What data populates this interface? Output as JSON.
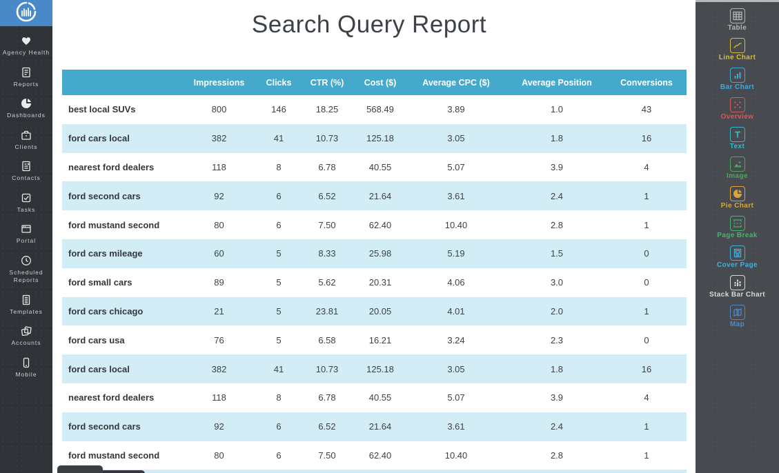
{
  "app": {
    "logo_icon": "circular-bar-chart-logo"
  },
  "report": {
    "title": "Search Query Report"
  },
  "left_sidebar": {
    "items": [
      {
        "label": "Agency Health",
        "icon": "heart-icon"
      },
      {
        "label": "Reports",
        "icon": "report-document-icon"
      },
      {
        "label": "Dashboards",
        "icon": "pie-dashboard-icon"
      },
      {
        "label": "Clients",
        "icon": "briefcase-icon"
      },
      {
        "label": "Contacts",
        "icon": "contact-card-icon"
      },
      {
        "label": "Tasks",
        "icon": "checkbox-icon"
      },
      {
        "label": "Portal",
        "icon": "browser-window-icon"
      },
      {
        "label": "Scheduled Reports",
        "icon": "clock-icon"
      },
      {
        "label": "Templates",
        "icon": "template-document-icon"
      },
      {
        "label": "Accounts",
        "icon": "stacked-cards-icon"
      },
      {
        "label": "Mobile",
        "icon": "smartphone-icon"
      }
    ]
  },
  "table": {
    "header_background": "#45a9cc",
    "alt_row_background": "#d3edf7",
    "columns": [
      "",
      "Impressions",
      "Clicks",
      "CTR (%)",
      "Cost ($)",
      "Average CPC ($)",
      "Average Position",
      "Conversions"
    ],
    "rows": [
      [
        "best local SUVs",
        "800",
        "146",
        "18.25",
        "568.49",
        "3.89",
        "1.0",
        "43"
      ],
      [
        "ford cars local",
        "382",
        "41",
        "10.73",
        "125.18",
        "3.05",
        "1.8",
        "16"
      ],
      [
        "nearest ford dealers",
        "118",
        "8",
        "6.78",
        "40.55",
        "5.07",
        "3.9",
        "4"
      ],
      [
        "ford second cars",
        "92",
        "6",
        "6.52",
        "21.64",
        "3.61",
        "2.4",
        "1"
      ],
      [
        "ford mustand second",
        "80",
        "6",
        "7.50",
        "62.40",
        "10.40",
        "2.8",
        "1"
      ],
      [
        "ford cars mileage",
        "60",
        "5",
        "8.33",
        "25.98",
        "5.19",
        "1.5",
        "0"
      ],
      [
        "ford small cars",
        "89",
        "5",
        "5.62",
        "20.31",
        "4.06",
        "3.0",
        "0"
      ],
      [
        "ford cars chicago",
        "21",
        "5",
        "23.81",
        "20.05",
        "4.01",
        "2.0",
        "1"
      ],
      [
        "ford cars usa",
        "76",
        "5",
        "6.58",
        "16.21",
        "3.24",
        "2.3",
        "0"
      ],
      [
        "ford cars local",
        "382",
        "41",
        "10.73",
        "125.18",
        "3.05",
        "1.8",
        "16"
      ],
      [
        "nearest ford dealers",
        "118",
        "8",
        "6.78",
        "40.55",
        "5.07",
        "3.9",
        "4"
      ],
      [
        "ford second cars",
        "92",
        "6",
        "6.52",
        "21.64",
        "3.61",
        "2.4",
        "1"
      ],
      [
        "ford mustand second",
        "80",
        "6",
        "7.50",
        "62.40",
        "10.40",
        "2.8",
        "1"
      ]
    ]
  },
  "right_sidebar": {
    "widgets": [
      {
        "label": "Table",
        "icon": "table-widget-icon",
        "color": "#b2b6ba"
      },
      {
        "label": "Line Chart",
        "icon": "line-chart-icon",
        "color": "#dcbb3a"
      },
      {
        "label": "Bar Chart",
        "icon": "bar-chart-icon",
        "color": "#41aadc"
      },
      {
        "label": "Overview",
        "icon": "overview-dots-icon",
        "color": "#d95a5a"
      },
      {
        "label": "Text",
        "icon": "text-widget-icon",
        "color": "#38b7ca"
      },
      {
        "label": "Image",
        "icon": "image-widget-icon",
        "color": "#4aa95c"
      },
      {
        "label": "Pie Chart",
        "icon": "pie-chart-icon",
        "color": "#d9a63a"
      },
      {
        "label": "Page Break",
        "icon": "page-break-icon",
        "color": "#45b56c"
      },
      {
        "label": "Cover Page",
        "icon": "cover-page-icon",
        "color": "#47aedd"
      },
      {
        "label": "Stack Bar Chart",
        "icon": "stack-bar-chart-icon",
        "color": "#d6d8da"
      },
      {
        "label": "Map",
        "icon": "map-widget-icon",
        "color": "#5287c6"
      }
    ]
  }
}
